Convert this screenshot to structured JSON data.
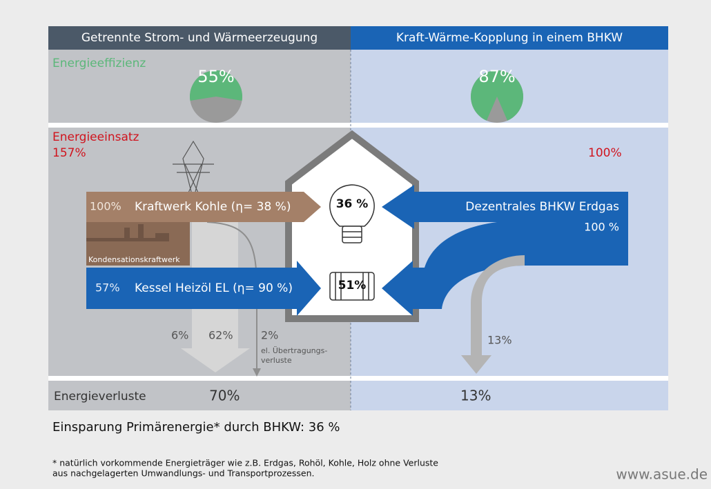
{
  "header": {
    "left_title": "Getrennte Strom- und Wärmeerzeugung",
    "right_title": "Kraft-Wärme-Kopplung in einem BHKW"
  },
  "efficiency": {
    "label": "Energieeffizienz",
    "left": {
      "value": 55,
      "label": "55%"
    },
    "right": {
      "value": 87,
      "label": "87%"
    }
  },
  "input": {
    "label": "Energieeinsatz",
    "left_total": "157%",
    "right_total": "100%"
  },
  "flows": {
    "coal_share": "100%",
    "coal_label": "Kraftwerk Kohle (η= 38 %)",
    "plant_label": "Kondensationskraftwerk",
    "oil_share": "57%",
    "oil_label": "Kessel Heizöl EL  (η= 90 %)",
    "chp_label": "Dezentrales BHKW Erdgas",
    "chp_share": "100 %",
    "electricity": "36 %",
    "heat": "51%"
  },
  "losses": {
    "left_a": "6%",
    "left_b": "62%",
    "left_c": "2%",
    "transmission_label_1": "el. Übertragungs-",
    "transmission_label_2": "verluste",
    "right": "13%"
  },
  "totals": {
    "label": "Energieverluste",
    "left": "70%",
    "right": "13%"
  },
  "savings": "Einsparung Primärenergie* durch BHKW: 36 %",
  "footnote": [
    "* natürlich vorkommende Energieträger wie z.B. Erdgas, Rohöl, Kohle, Holz ohne Verluste",
    "aus nachgelagerten Umwandlungs- und Transportprozessen."
  ],
  "source": "www.asue.de"
}
